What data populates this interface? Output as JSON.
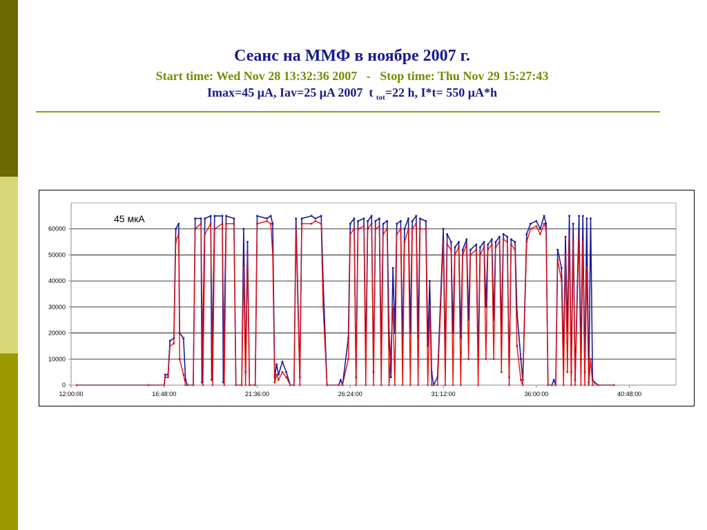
{
  "slide": {
    "sidebar_colors": [
      "#6b6b00",
      "#d8d87a",
      "#9a9a00"
    ],
    "title_color": "#1a1a8c",
    "subtitle_color": "#7a8a00",
    "info_color": "#1a1a8c",
    "rule_color": "#9a9a00",
    "title": "Сеанс на ММФ в ноябре 2007 г.",
    "subtitle": "Start time: Wed Nov 28 13:32:36 2007   -   Stop time: Thu Nov 29 15:27:43",
    "info_pre": "Imax=45 μA, Iav=25 μA 2007  t ",
    "info_sub": "tot",
    "info_post": "=22 h, I*t= 550 μA*h"
  },
  "chart_data": {
    "type": "line",
    "title": "",
    "xlabel": "",
    "ylabel": "",
    "annotation": "45 мкА",
    "x_unit": "hours",
    "xlim": [
      12.0,
      43.2
    ],
    "ylim": [
      0,
      70000
    ],
    "y_ticks": [
      0,
      10000,
      20000,
      30000,
      40000,
      50000,
      60000
    ],
    "y_tick_labels": [
      "0",
      "10000",
      "20000",
      "30000",
      "40000",
      "50000",
      "60000"
    ],
    "x_ticks": [
      12.0,
      16.8,
      21.6,
      26.4,
      31.2,
      36.0,
      40.8
    ],
    "x_tick_labels": [
      "12:00:00",
      "16:48:00",
      "21:36:00",
      "26:24:00",
      "31:12:00",
      "36:00:00",
      "40:48:00"
    ],
    "grid": true,
    "series_colors": [
      "#1a1a9a",
      "#e01010"
    ],
    "series": [
      {
        "name": "",
        "color": "#1a1a9a",
        "points": [
          [
            12.3,
            0
          ],
          [
            16.0,
            0
          ],
          [
            16.8,
            0
          ],
          [
            16.85,
            4000
          ],
          [
            17.0,
            4000
          ],
          [
            17.1,
            17000
          ],
          [
            17.3,
            18000
          ],
          [
            17.4,
            60000
          ],
          [
            17.55,
            62000
          ],
          [
            17.6,
            20000
          ],
          [
            17.8,
            18000
          ],
          [
            17.9,
            2000
          ],
          [
            18.0,
            0
          ],
          [
            18.3,
            0
          ],
          [
            18.4,
            64000
          ],
          [
            18.7,
            64000
          ],
          [
            18.75,
            1000
          ],
          [
            18.9,
            64000
          ],
          [
            19.2,
            65000
          ],
          [
            19.25,
            2000
          ],
          [
            19.4,
            65000
          ],
          [
            19.8,
            65000
          ],
          [
            19.85,
            1000
          ],
          [
            20.0,
            65000
          ],
          [
            20.4,
            64000
          ],
          [
            20.5,
            0
          ],
          [
            20.8,
            0
          ],
          [
            20.9,
            60000
          ],
          [
            21.0,
            5000
          ],
          [
            21.1,
            55000
          ],
          [
            21.2,
            0
          ],
          [
            21.5,
            0
          ],
          [
            21.6,
            65000
          ],
          [
            22.1,
            64000
          ],
          [
            22.3,
            65000
          ],
          [
            22.4,
            62000
          ],
          [
            22.5,
            3000
          ],
          [
            22.6,
            8000
          ],
          [
            22.7,
            4000
          ],
          [
            22.9,
            9000
          ],
          [
            23.1,
            5000
          ],
          [
            23.3,
            0
          ],
          [
            23.5,
            0
          ],
          [
            23.6,
            64000
          ],
          [
            23.8,
            3000
          ],
          [
            23.9,
            64000
          ],
          [
            24.4,
            65000
          ],
          [
            24.6,
            64000
          ],
          [
            24.9,
            65000
          ],
          [
            25.0,
            40000
          ],
          [
            25.2,
            0
          ],
          [
            25.8,
            0
          ],
          [
            25.9,
            2000
          ],
          [
            26.0,
            0
          ],
          [
            26.3,
            18000
          ],
          [
            26.4,
            62000
          ],
          [
            26.6,
            64000
          ],
          [
            26.7,
            3000
          ],
          [
            26.8,
            63000
          ],
          [
            27.1,
            64000
          ],
          [
            27.2,
            10000
          ],
          [
            27.3,
            63000
          ],
          [
            27.5,
            65000
          ],
          [
            27.6,
            5000
          ],
          [
            27.7,
            63000
          ],
          [
            27.9,
            64000
          ],
          [
            28.0,
            12000
          ],
          [
            28.1,
            62000
          ],
          [
            28.3,
            63000
          ],
          [
            28.4,
            20000
          ],
          [
            28.5,
            3000
          ],
          [
            28.6,
            45000
          ],
          [
            28.7,
            20000
          ],
          [
            28.8,
            62000
          ],
          [
            29.0,
            63000
          ],
          [
            29.1,
            15000
          ],
          [
            29.2,
            60000
          ],
          [
            29.4,
            64000
          ],
          [
            29.5,
            20000
          ],
          [
            29.6,
            63000
          ],
          [
            29.8,
            65000
          ],
          [
            29.9,
            18000
          ],
          [
            30.0,
            64000
          ],
          [
            30.3,
            63000
          ],
          [
            30.4,
            15000
          ],
          [
            30.5,
            40000
          ],
          [
            30.6,
            5000
          ],
          [
            30.7,
            0
          ],
          [
            30.9,
            3000
          ],
          [
            31.2,
            60000
          ],
          [
            31.3,
            10000
          ],
          [
            31.4,
            58000
          ],
          [
            31.6,
            55000
          ],
          [
            31.7,
            20000
          ],
          [
            31.8,
            53000
          ],
          [
            32.0,
            55000
          ],
          [
            32.1,
            18000
          ],
          [
            32.2,
            52000
          ],
          [
            32.4,
            56000
          ],
          [
            32.5,
            25000
          ],
          [
            32.6,
            52000
          ],
          [
            32.9,
            54000
          ],
          [
            33.0,
            10000
          ],
          [
            33.1,
            53000
          ],
          [
            33.3,
            55000
          ],
          [
            33.4,
            30000
          ],
          [
            33.5,
            54000
          ],
          [
            33.7,
            56000
          ],
          [
            33.8,
            25000
          ],
          [
            33.9,
            55000
          ],
          [
            34.1,
            57000
          ],
          [
            34.2,
            20000
          ],
          [
            34.3,
            58000
          ],
          [
            34.5,
            57000
          ],
          [
            34.6,
            3000
          ],
          [
            34.7,
            56000
          ],
          [
            34.9,
            55000
          ],
          [
            35.0,
            28000
          ],
          [
            35.2,
            10000
          ],
          [
            35.3,
            2000
          ],
          [
            35.5,
            58000
          ],
          [
            35.7,
            62000
          ],
          [
            36.0,
            63000
          ],
          [
            36.2,
            60000
          ],
          [
            36.4,
            65000
          ],
          [
            36.5,
            62000
          ],
          [
            36.6,
            0
          ],
          [
            36.8,
            0
          ],
          [
            36.9,
            2000
          ],
          [
            37.0,
            0
          ],
          [
            37.1,
            52000
          ],
          [
            37.3,
            45000
          ],
          [
            37.4,
            10000
          ],
          [
            37.5,
            57000
          ],
          [
            37.6,
            20000
          ],
          [
            37.7,
            65000
          ],
          [
            37.8,
            5000
          ],
          [
            37.9,
            62000
          ],
          [
            38.0,
            2000
          ],
          [
            38.2,
            65000
          ],
          [
            38.3,
            10000
          ],
          [
            38.4,
            65000
          ],
          [
            38.5,
            5000
          ],
          [
            38.6,
            64000
          ],
          [
            38.7,
            1000
          ],
          [
            38.8,
            64000
          ],
          [
            38.9,
            2000
          ],
          [
            39.0,
            1000
          ],
          [
            39.2,
            0
          ],
          [
            40.0,
            0
          ]
        ]
      },
      {
        "name": "",
        "color": "#e01010",
        "points": [
          [
            12.3,
            0
          ],
          [
            16.0,
            0
          ],
          [
            16.8,
            0
          ],
          [
            16.85,
            3000
          ],
          [
            17.0,
            3000
          ],
          [
            17.1,
            15000
          ],
          [
            17.3,
            16000
          ],
          [
            17.4,
            55000
          ],
          [
            17.55,
            58000
          ],
          [
            17.6,
            10000
          ],
          [
            17.8,
            4000
          ],
          [
            17.9,
            0
          ],
          [
            18.3,
            0
          ],
          [
            18.4,
            60000
          ],
          [
            18.7,
            62000
          ],
          [
            18.8,
            0
          ],
          [
            18.9,
            58000
          ],
          [
            19.2,
            62000
          ],
          [
            19.3,
            0
          ],
          [
            19.4,
            60000
          ],
          [
            19.8,
            62000
          ],
          [
            19.9,
            0
          ],
          [
            20.0,
            62000
          ],
          [
            20.4,
            62000
          ],
          [
            20.5,
            0
          ],
          [
            20.8,
            0
          ],
          [
            20.9,
            45000
          ],
          [
            21.0,
            0
          ],
          [
            21.1,
            50000
          ],
          [
            21.2,
            0
          ],
          [
            21.5,
            0
          ],
          [
            21.6,
            62000
          ],
          [
            22.1,
            63000
          ],
          [
            22.3,
            62000
          ],
          [
            22.4,
            50000
          ],
          [
            22.5,
            1000
          ],
          [
            22.6,
            4000
          ],
          [
            22.7,
            2000
          ],
          [
            22.9,
            5000
          ],
          [
            23.1,
            3000
          ],
          [
            23.3,
            0
          ],
          [
            23.5,
            0
          ],
          [
            23.6,
            60000
          ],
          [
            23.8,
            0
          ],
          [
            23.9,
            62000
          ],
          [
            24.4,
            62000
          ],
          [
            24.6,
            63000
          ],
          [
            24.9,
            62000
          ],
          [
            25.0,
            30000
          ],
          [
            25.2,
            0
          ],
          [
            25.8,
            0
          ],
          [
            26.0,
            0
          ],
          [
            26.3,
            10000
          ],
          [
            26.4,
            58000
          ],
          [
            26.6,
            60000
          ],
          [
            26.7,
            0
          ],
          [
            26.8,
            60000
          ],
          [
            27.1,
            61000
          ],
          [
            27.2,
            0
          ],
          [
            27.3,
            60000
          ],
          [
            27.5,
            62000
          ],
          [
            27.6,
            0
          ],
          [
            27.7,
            60000
          ],
          [
            27.9,
            61000
          ],
          [
            28.0,
            0
          ],
          [
            28.1,
            58000
          ],
          [
            28.3,
            60000
          ],
          [
            28.4,
            0
          ],
          [
            28.6,
            30000
          ],
          [
            28.7,
            0
          ],
          [
            28.8,
            58000
          ],
          [
            29.0,
            60000
          ],
          [
            29.1,
            0
          ],
          [
            29.2,
            55000
          ],
          [
            29.4,
            60000
          ],
          [
            29.5,
            0
          ],
          [
            29.6,
            60000
          ],
          [
            29.8,
            62000
          ],
          [
            29.9,
            0
          ],
          [
            30.0,
            60000
          ],
          [
            30.3,
            60000
          ],
          [
            30.4,
            0
          ],
          [
            30.5,
            30000
          ],
          [
            30.6,
            0
          ],
          [
            30.9,
            0
          ],
          [
            31.2,
            55000
          ],
          [
            31.3,
            0
          ],
          [
            31.4,
            54000
          ],
          [
            31.6,
            52000
          ],
          [
            31.7,
            0
          ],
          [
            31.8,
            50000
          ],
          [
            32.0,
            53000
          ],
          [
            32.1,
            0
          ],
          [
            32.2,
            50000
          ],
          [
            32.4,
            54000
          ],
          [
            32.5,
            10000
          ],
          [
            32.6,
            50000
          ],
          [
            32.9,
            52000
          ],
          [
            33.0,
            0
          ],
          [
            33.1,
            50000
          ],
          [
            33.3,
            53000
          ],
          [
            33.4,
            10000
          ],
          [
            33.5,
            52000
          ],
          [
            33.7,
            54000
          ],
          [
            33.8,
            10000
          ],
          [
            33.9,
            53000
          ],
          [
            34.1,
            55000
          ],
          [
            34.2,
            5000
          ],
          [
            34.3,
            56000
          ],
          [
            34.5,
            55000
          ],
          [
            34.6,
            0
          ],
          [
            34.7,
            54000
          ],
          [
            34.9,
            52000
          ],
          [
            35.0,
            15000
          ],
          [
            35.2,
            2000
          ],
          [
            35.3,
            0
          ],
          [
            35.5,
            55000
          ],
          [
            35.7,
            60000
          ],
          [
            36.0,
            61000
          ],
          [
            36.2,
            58000
          ],
          [
            36.4,
            62000
          ],
          [
            36.5,
            60000
          ],
          [
            36.6,
            0
          ],
          [
            37.0,
            0
          ],
          [
            37.1,
            48000
          ],
          [
            37.3,
            40000
          ],
          [
            37.4,
            0
          ],
          [
            37.5,
            50000
          ],
          [
            37.6,
            5000
          ],
          [
            37.7,
            58000
          ],
          [
            37.8,
            0
          ],
          [
            37.9,
            55000
          ],
          [
            38.0,
            0
          ],
          [
            38.2,
            58000
          ],
          [
            38.3,
            0
          ],
          [
            38.4,
            55000
          ],
          [
            38.5,
            0
          ],
          [
            38.6,
            45000
          ],
          [
            38.7,
            0
          ],
          [
            38.8,
            10000
          ],
          [
            38.9,
            0
          ],
          [
            39.2,
            0
          ],
          [
            40.0,
            0
          ]
        ]
      }
    ]
  }
}
